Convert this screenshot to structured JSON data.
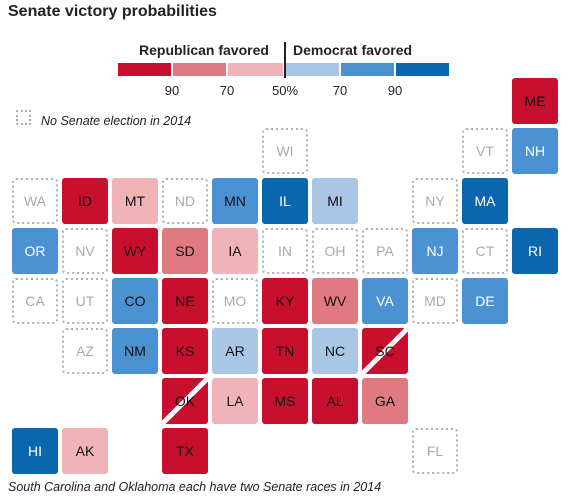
{
  "title": "Senate victory probabilities",
  "legend": {
    "republican_label": "Republican favored",
    "democrat_label": "Democrat favored",
    "ticks": [
      "90",
      "70",
      "50%",
      "70",
      "90"
    ],
    "swatches": [
      {
        "label": "Republican >90%",
        "color": "#c8102e"
      },
      {
        "label": "Republican 70-90%",
        "color": "#df7a80"
      },
      {
        "label": "Republican 50-70%",
        "color": "#efb3b8"
      },
      {
        "label": "Democrat 50-70%",
        "color": "#a9c6e6"
      },
      {
        "label": "Democrat 70-90%",
        "color": "#4b92d3"
      },
      {
        "label": "Democrat >90%",
        "color": "#0a67ad"
      }
    ],
    "no_election_label": "No Senate election in 2014"
  },
  "footnote": "South Carolina and Oklahoma each have two Senate races in 2014",
  "chart_data": {
    "type": "heatmap",
    "description_scale": [
      "rep_strong",
      "rep_lean",
      "rep_tilt",
      "dem_tilt",
      "dem_lean",
      "dem_strong",
      "none"
    ],
    "colors": {
      "rep_strong": "#c8102e",
      "rep_lean": "#df7a80",
      "rep_tilt": "#efb3b8",
      "dem_tilt": "#a9c6e6",
      "dem_lean": "#4b92d3",
      "dem_strong": "#0a67ad",
      "none": "#ffffff"
    },
    "states": [
      {
        "abbr": "ME",
        "row": 0,
        "col": 10,
        "rating": "rep_strong"
      },
      {
        "abbr": "WI",
        "row": 1,
        "col": 5,
        "rating": "none"
      },
      {
        "abbr": "VT",
        "row": 1,
        "col": 9,
        "rating": "none"
      },
      {
        "abbr": "NH",
        "row": 1,
        "col": 10,
        "rating": "dem_lean"
      },
      {
        "abbr": "WA",
        "row": 2,
        "col": 0,
        "rating": "none"
      },
      {
        "abbr": "ID",
        "row": 2,
        "col": 1,
        "rating": "rep_strong"
      },
      {
        "abbr": "MT",
        "row": 2,
        "col": 2,
        "rating": "rep_tilt"
      },
      {
        "abbr": "ND",
        "row": 2,
        "col": 3,
        "rating": "none"
      },
      {
        "abbr": "MN",
        "row": 2,
        "col": 4,
        "rating": "dem_lean"
      },
      {
        "abbr": "IL",
        "row": 2,
        "col": 5,
        "rating": "dem_strong"
      },
      {
        "abbr": "MI",
        "row": 2,
        "col": 6,
        "rating": "dem_tilt"
      },
      {
        "abbr": "NY",
        "row": 2,
        "col": 8,
        "rating": "none"
      },
      {
        "abbr": "MA",
        "row": 2,
        "col": 9,
        "rating": "dem_strong"
      },
      {
        "abbr": "OR",
        "row": 3,
        "col": 0,
        "rating": "dem_lean"
      },
      {
        "abbr": "NV",
        "row": 3,
        "col": 1,
        "rating": "none"
      },
      {
        "abbr": "WY",
        "row": 3,
        "col": 2,
        "rating": "rep_strong"
      },
      {
        "abbr": "SD",
        "row": 3,
        "col": 3,
        "rating": "rep_lean"
      },
      {
        "abbr": "IA",
        "row": 3,
        "col": 4,
        "rating": "rep_tilt"
      },
      {
        "abbr": "IN",
        "row": 3,
        "col": 5,
        "rating": "none"
      },
      {
        "abbr": "OH",
        "row": 3,
        "col": 6,
        "rating": "none"
      },
      {
        "abbr": "PA",
        "row": 3,
        "col": 7,
        "rating": "none"
      },
      {
        "abbr": "NJ",
        "row": 3,
        "col": 8,
        "rating": "dem_lean"
      },
      {
        "abbr": "CT",
        "row": 3,
        "col": 9,
        "rating": "none"
      },
      {
        "abbr": "RI",
        "row": 3,
        "col": 10,
        "rating": "dem_strong"
      },
      {
        "abbr": "CA",
        "row": 4,
        "col": 0,
        "rating": "none"
      },
      {
        "abbr": "UT",
        "row": 4,
        "col": 1,
        "rating": "none"
      },
      {
        "abbr": "CO",
        "row": 4,
        "col": 2,
        "rating": "dem_lean"
      },
      {
        "abbr": "NE",
        "row": 4,
        "col": 3,
        "rating": "rep_strong"
      },
      {
        "abbr": "MO",
        "row": 4,
        "col": 4,
        "rating": "none"
      },
      {
        "abbr": "KY",
        "row": 4,
        "col": 5,
        "rating": "rep_strong"
      },
      {
        "abbr": "WV",
        "row": 4,
        "col": 6,
        "rating": "rep_lean"
      },
      {
        "abbr": "VA",
        "row": 4,
        "col": 7,
        "rating": "dem_lean"
      },
      {
        "abbr": "MD",
        "row": 4,
        "col": 8,
        "rating": "none"
      },
      {
        "abbr": "DE",
        "row": 4,
        "col": 9,
        "rating": "dem_lean"
      },
      {
        "abbr": "AZ",
        "row": 5,
        "col": 1,
        "rating": "none"
      },
      {
        "abbr": "NM",
        "row": 5,
        "col": 2,
        "rating": "dem_lean"
      },
      {
        "abbr": "KS",
        "row": 5,
        "col": 3,
        "rating": "rep_strong"
      },
      {
        "abbr": "AR",
        "row": 5,
        "col": 4,
        "rating": "dem_tilt"
      },
      {
        "abbr": "TN",
        "row": 5,
        "col": 5,
        "rating": "rep_strong"
      },
      {
        "abbr": "NC",
        "row": 5,
        "col": 6,
        "rating": "dem_tilt"
      },
      {
        "abbr": "SC",
        "row": 5,
        "col": 7,
        "rating": "rep_strong",
        "split": true
      },
      {
        "abbr": "OK",
        "row": 6,
        "col": 3,
        "rating": "rep_strong",
        "split": true
      },
      {
        "abbr": "LA",
        "row": 6,
        "col": 4,
        "rating": "rep_tilt"
      },
      {
        "abbr": "MS",
        "row": 6,
        "col": 5,
        "rating": "rep_strong"
      },
      {
        "abbr": "AL",
        "row": 6,
        "col": 6,
        "rating": "rep_strong"
      },
      {
        "abbr": "GA",
        "row": 6,
        "col": 7,
        "rating": "rep_lean"
      },
      {
        "abbr": "HI",
        "row": 7,
        "col": 0,
        "rating": "dem_strong"
      },
      {
        "abbr": "AK",
        "row": 7,
        "col": 1,
        "rating": "rep_tilt"
      },
      {
        "abbr": "TX",
        "row": 7,
        "col": 3,
        "rating": "rep_strong"
      },
      {
        "abbr": "FL",
        "row": 7,
        "col": 8,
        "rating": "none"
      }
    ]
  }
}
